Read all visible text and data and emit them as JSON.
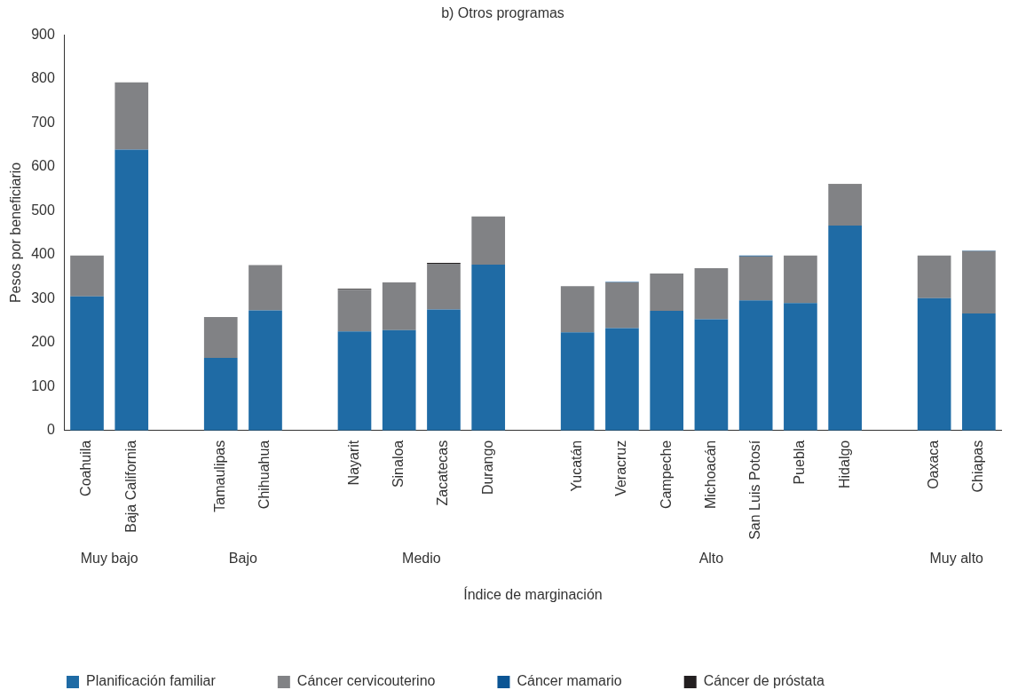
{
  "chart_data": {
    "type": "bar",
    "stacked": true,
    "title": "b) Otros programas",
    "xlabel": "Índice de marginación",
    "ylabel": "Pesos por beneficiario",
    "categories": [
      "Coahuila",
      "Baja California",
      null,
      "Tamaulipas",
      "Chihuahua",
      null,
      "Nayarit",
      "Sinaloa",
      "Zacatecas",
      "Durango",
      null,
      "Yucatán",
      "Veracruz",
      "Campeche",
      "Michoacán",
      "San Luis Potosí",
      "Puebla",
      "Hidalgo",
      null,
      "Oaxaca",
      "Chiapas"
    ],
    "series": [
      {
        "name": "Planificación familiar",
        "color": "#1f6ba5",
        "values": [
          305,
          639,
          null,
          165,
          273,
          null,
          225,
          228,
          275,
          377,
          null,
          223,
          233,
          272,
          253,
          296,
          290,
          466,
          null,
          301,
          266
        ]
      },
      {
        "name": "Cáncer cervicouterino",
        "color": "#818285",
        "values": [
          93,
          153,
          null,
          93,
          103,
          null,
          95,
          109,
          104,
          110,
          null,
          105,
          104,
          85,
          116,
          100,
          108,
          94,
          null,
          97,
          142
        ]
      },
      {
        "name": "Cáncer mamario",
        "color": "#0b5594",
        "values": [
          0,
          0,
          null,
          0,
          0,
          null,
          0,
          0,
          0,
          0,
          null,
          0,
          1,
          0,
          0,
          2,
          0,
          0,
          null,
          0,
          1
        ]
      },
      {
        "name": "Cáncer de próstata",
        "color": "#231f20",
        "values": [
          0,
          0,
          null,
          0,
          0,
          null,
          2,
          0,
          2,
          0,
          null,
          0,
          0,
          0,
          0,
          0,
          0,
          1,
          null,
          0,
          0
        ]
      }
    ],
    "annotations": [
      "Muy bajo",
      "Bajo",
      "Medio",
      "Alto",
      "Muy alto"
    ],
    "ylim": [
      0,
      900
    ],
    "yticks": [
      0,
      100,
      200,
      300,
      400,
      500,
      600,
      700,
      800,
      900
    ],
    "grid": false,
    "legend": "bottom"
  }
}
